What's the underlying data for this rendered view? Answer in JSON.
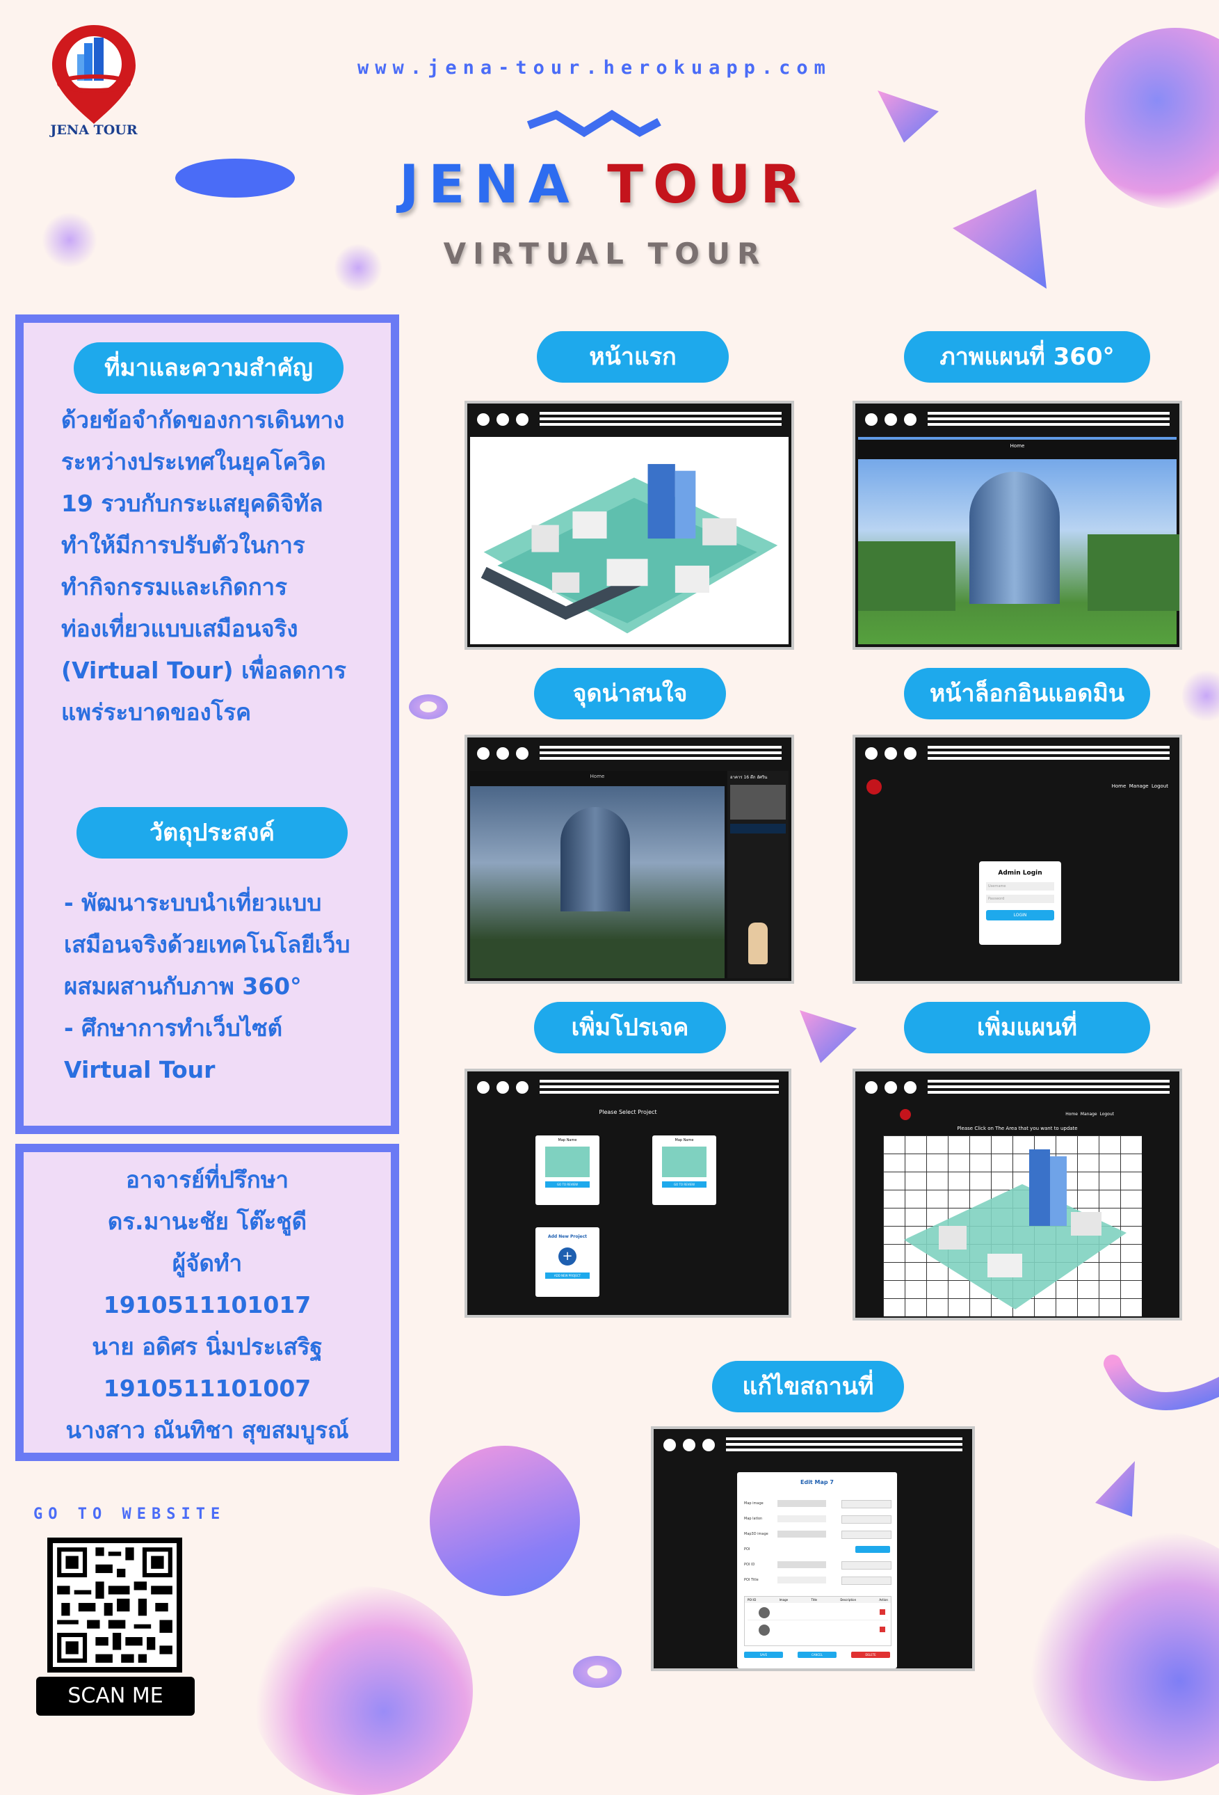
{
  "header": {
    "url": "www.jena-tour.herokuapp.com",
    "title_part1": "JENA",
    "title_part2": "TOUR",
    "subtitle": "VIRTUAL TOUR",
    "logo_text": "JENA TOUR"
  },
  "background_section": {
    "heading": "ที่มาและความสำคัญ",
    "lines": [
      "ด้วยข้อจำกัดของการเดินทาง",
      "ระหว่างประเทศในยุคโควิด",
      "19  รวบกับกระแสยุคดิจิทัล",
      "ทำให้มีการปรับตัวในการ",
      "ทำกิจกรรมและเกิดการ",
      "ท่องเที่ยวแบบเสมือนจริง",
      "(Virtual Tour) เพื่อลดการ",
      "แพร่ระบาดของโรค"
    ]
  },
  "objective_section": {
    "heading": "วัตถุประสงค์",
    "lines": [
      "- พัฒนาระบบนำเที่ยวแบบ",
      "เสมือนจริงด้วยเทคโนโลยีเว็บ",
      "ผสมผสานกับภาพ 360°",
      "- ศึกษาการทำเว็บไซต์",
      "Virtual Tour"
    ]
  },
  "credits": {
    "lines": [
      "อาจารย์ที่ปรึกษา",
      "ดร.มานะชัย โต๊ะชูดี",
      "ผู้จัดทำ",
      "1910511101017",
      "นาย  อดิศร  นิ่มประเสริฐ",
      "1910511101007",
      "นางสาว  ณันทิชา  สุขสมบูรณ์"
    ]
  },
  "website_cta": {
    "label": "GO TO WEBSITE",
    "scan_label": "SCAN ME"
  },
  "screens": {
    "home": {
      "label": "หน้าแรก"
    },
    "map360": {
      "label": "ภาพแผนที่ 360°",
      "nav": "Home"
    },
    "poi": {
      "label": "จุดน่าสนใจ",
      "nav": "Home",
      "side_title": "อาคาร 16 ตึก อัศวิน"
    },
    "admin_login": {
      "label": "หน้าล็อกอินแอดมิน",
      "nav": [
        "Home",
        "Manage",
        "Logout"
      ],
      "box_title": "Admin Login",
      "username": "Username",
      "password": "Password",
      "button": "LOGIN"
    },
    "add_project": {
      "label": "เพิ่มโปรเจค",
      "heading": "Please Select Project",
      "card_title": "Map Name",
      "add_title": "Add New Project",
      "add_button": "ADD NEW PROJECT",
      "go_button": "GO TO REVIEW"
    },
    "add_map": {
      "label": "เพิ่มแผนที่",
      "nav": [
        "Home",
        "Manage",
        "Logout"
      ],
      "heading": "Please Click on The Area that you want to update"
    },
    "edit_place": {
      "label": "แก้ไขสถานที่",
      "form_title": "Edit Map 7",
      "fields": [
        "Map image",
        "Map latlon",
        "Map3D image",
        "POI",
        "POI ID",
        "POI Title"
      ],
      "buttons": [
        "SAVE",
        "CANCEL",
        "DELETE"
      ],
      "table_headers": [
        "POI ID",
        "Image",
        "Title",
        "Description",
        "Action"
      ]
    }
  },
  "colors": {
    "accent_blue": "#1ea9ec",
    "title_blue": "#2d6cf0",
    "title_red": "#c4141c",
    "panel_fill": "#f0dcf7",
    "panel_border": "#6a7af4",
    "text_blue": "#2a6fe0"
  }
}
